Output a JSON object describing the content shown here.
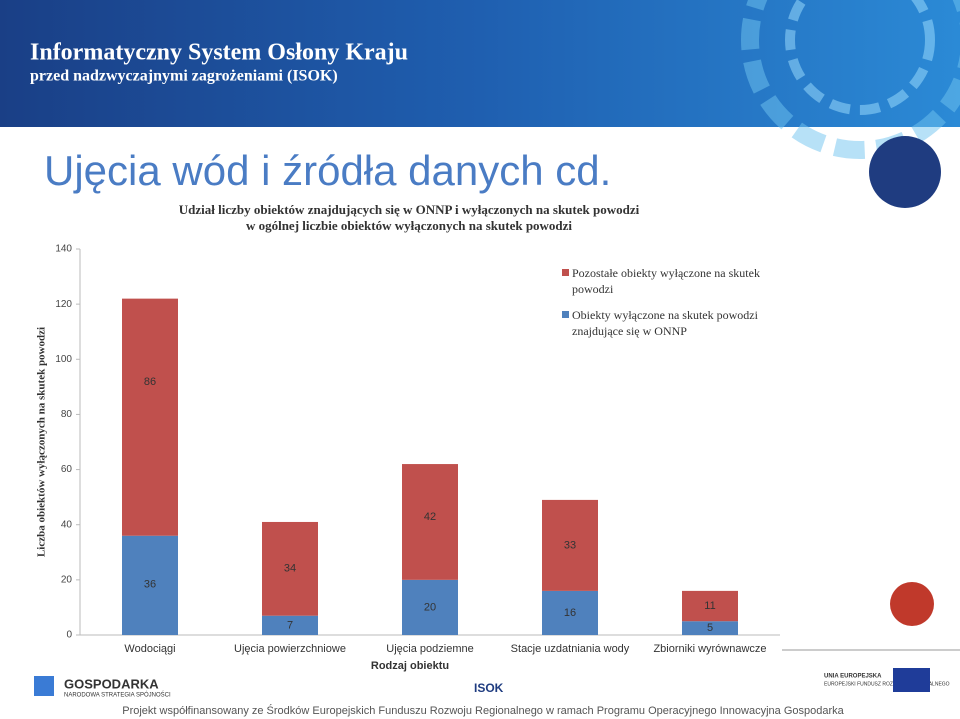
{
  "header": {
    "title": "Informatyczny System Osłony Kraju",
    "subtitle": "przed nadzwyczajnymi zagrożeniami (ISOK)"
  },
  "slide_title": "Ujęcia wód i źródła danych cd.",
  "chart_data": {
    "type": "stacked_bar",
    "title": [
      "Udział liczby obiektów znajdujących się w ONNP i wyłączonych na skutek powodzi",
      "w ogólnej liczbie obiektów wyłączonych na skutek powodzi"
    ],
    "x_label": "Rodzaj obiektu",
    "y_label": "Liczba obiektów wyłączonych na skutek powodzi",
    "categories": [
      "Wodociągi",
      "Ujęcia powierzchniowe",
      "Ujęcia podziemne",
      "Stacje uzdatniania wody",
      "Zbiorniki wyrównawcze"
    ],
    "series": [
      {
        "name": "Obiekty wyłączone na skutek powodzi znajdujące się w ONNP",
        "color": "#4f81bd",
        "values": [
          36,
          7,
          20,
          16,
          5
        ]
      },
      {
        "name": "Pozostałe obiekty wyłączone na skutek powodzi",
        "color": "#c0504d",
        "values": [
          86,
          34,
          42,
          33,
          11
        ]
      }
    ],
    "ylim": [
      0,
      140
    ],
    "yticks": [
      0,
      20,
      40,
      60,
      80,
      100,
      120,
      140
    ],
    "grid": false
  },
  "footer": {
    "text": "Projekt współfinansowany ze Środków Europejskich Funduszu Rozwoju Regionalnego w ramach Programu Operacyjnego Innowacyjna Gospodarka",
    "logos": [
      "GOSPODARKA",
      "NARODOWA STRATEGIA SPÓJNOŚCI",
      "ISOK",
      "UNIA EUROPEJSKA",
      "EUROPEJSKI FUNDUSZ ROZWOJU REGIONALNEGO"
    ]
  }
}
